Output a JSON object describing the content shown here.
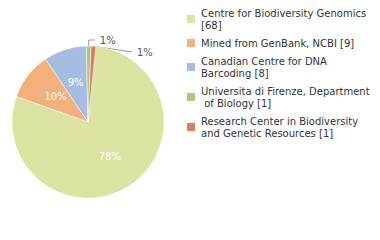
{
  "chart_data": {
    "type": "pie",
    "categories": [
      "Centre for Biodiversity Genomics [68]",
      "Mined from GenBank, NCBI [9]",
      "Canadian Centre for DNA Barcoding [8]",
      "Universita di Firenze, Department of Biology [1]",
      "Research Center in Biodiversity and Genetic Resources [1]"
    ],
    "values": [
      78,
      10,
      9,
      1,
      1
    ],
    "value_labels": [
      "78%",
      "10%",
      "9%",
      "1%",
      "1%"
    ],
    "colors": [
      "#dbe3a1",
      "#f1b07c",
      "#a6bce0",
      "#a9c97c",
      "#de7b63"
    ],
    "data_labels": true,
    "legend": "right"
  }
}
